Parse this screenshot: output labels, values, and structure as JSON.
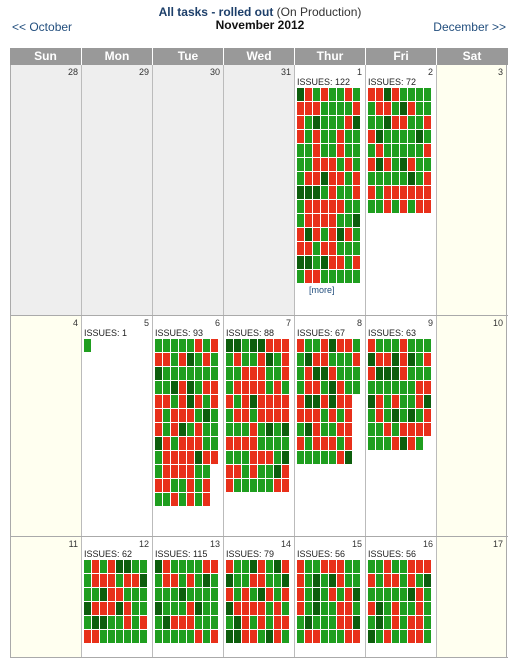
{
  "header": {
    "prev_label": "<< October",
    "next_label": "December >>",
    "title_bold": "All tasks - rolled out",
    "title_rest": "(On Production)",
    "month_label": "November 2012"
  },
  "weekdays": [
    "Sun",
    "Mon",
    "Tue",
    "Wed",
    "Thur",
    "Fri",
    "Sat"
  ],
  "colors": {
    "green": "#1f9e1f",
    "dark_green": "#0d5e0d",
    "red": "#e8301a",
    "header_bg": "#999999"
  },
  "weeks": [
    {
      "height": 250,
      "days": [
        {
          "day": "28",
          "kind": "other"
        },
        {
          "day": "29",
          "kind": "other"
        },
        {
          "day": "30",
          "kind": "other"
        },
        {
          "day": "31",
          "kind": "other"
        },
        {
          "day": "1",
          "kind": "cur",
          "issues": "ISSUES: 122",
          "count": 122,
          "rows": 14,
          "more": "[more]"
        },
        {
          "day": "2",
          "kind": "cur",
          "issues": "ISSUES: 72",
          "count": 72
        },
        {
          "day": "3",
          "kind": "weekend"
        }
      ]
    },
    {
      "height": 220,
      "days": [
        {
          "day": "4",
          "kind": "weekend"
        },
        {
          "day": "5",
          "kind": "cur",
          "issues": "ISSUES: 1",
          "count": 1
        },
        {
          "day": "6",
          "kind": "cur",
          "issues": "ISSUES: 93",
          "count": 93
        },
        {
          "day": "7",
          "kind": "cur",
          "issues": "ISSUES: 88",
          "count": 88
        },
        {
          "day": "8",
          "kind": "cur",
          "issues": "ISSUES: 67",
          "count": 67
        },
        {
          "day": "9",
          "kind": "cur",
          "issues": "ISSUES: 63",
          "count": 63
        },
        {
          "day": "10",
          "kind": "weekend"
        }
      ]
    },
    {
      "height": 120,
      "days": [
        {
          "day": "11",
          "kind": "weekend"
        },
        {
          "day": "12",
          "kind": "cur",
          "issues": "ISSUES: 62",
          "count": 62
        },
        {
          "day": "13",
          "kind": "cur",
          "issues": "ISSUES: 115",
          "count": 115
        },
        {
          "day": "14",
          "kind": "cur",
          "issues": "ISSUES: 79",
          "count": 79
        },
        {
          "day": "15",
          "kind": "cur",
          "issues": "ISSUES: 56",
          "count": 56
        },
        {
          "day": "16",
          "kind": "cur",
          "issues": "ISSUES: 56",
          "count": 56
        },
        {
          "day": "17",
          "kind": "weekend"
        }
      ]
    }
  ]
}
